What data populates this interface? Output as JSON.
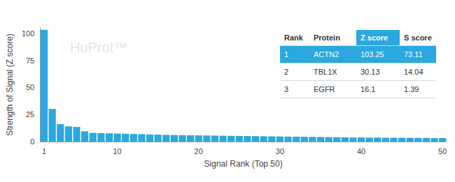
{
  "chart_data": {
    "type": "bar",
    "x_label": "Signal Rank (Top 50)",
    "y_label": "Strength of Signal (Z score)",
    "annotations": [
      "HuProt™"
    ],
    "categories": [
      "1",
      null,
      null,
      null,
      null,
      null,
      null,
      null,
      null,
      "10",
      null,
      null,
      null,
      null,
      null,
      null,
      null,
      null,
      null,
      "20",
      null,
      null,
      null,
      null,
      null,
      null,
      null,
      null,
      null,
      "30",
      null,
      null,
      null,
      null,
      null,
      null,
      null,
      null,
      null,
      "40",
      null,
      null,
      null,
      null,
      null,
      null,
      null,
      null,
      null,
      "50"
    ],
    "values": [
      103.25,
      30.13,
      16.1,
      14,
      13.5,
      9.5,
      8,
      7.8,
      7.6,
      7.4,
      7.2,
      7.0,
      6.8,
      6.6,
      6.4,
      6.2,
      6.0,
      5.9,
      5.8,
      5.7,
      5.6,
      5.5,
      5.4,
      5.3,
      5.2,
      5.1,
      5.0,
      4.9,
      4.8,
      4.7,
      4.6,
      4.5,
      4.4,
      4.3,
      4.2,
      4.1,
      4.0,
      3.9,
      3.8,
      3.75,
      3.7,
      3.65,
      3.6,
      3.55,
      3.5,
      3.45,
      3.4,
      3.35,
      3.3,
      3.25
    ],
    "color": "#2aa8df",
    "ylim": [
      0,
      105
    ],
    "yticks": [
      0,
      25,
      50,
      75,
      100
    ],
    "grid": false
  },
  "table": {
    "header": [
      "Rank",
      "Protein",
      "Z score",
      "S score"
    ],
    "rows": [
      [
        1,
        "ACTN2",
        103.25,
        73.11
      ],
      [
        2,
        "TBL1X",
        30.13,
        14.04
      ],
      [
        3,
        "EGFR",
        16.1,
        1.39
      ]
    ]
  }
}
